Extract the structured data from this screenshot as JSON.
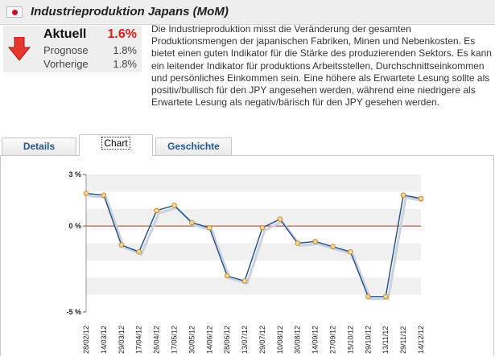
{
  "header": {
    "title": "Industrieproduktion Japans (MoM)",
    "flag_icon": "japan-flag-icon"
  },
  "values": {
    "trend_icon": "arrow-down-icon",
    "actual_label": "Aktuell",
    "actual_value": "1.6%",
    "forecast_label": "Prognose",
    "forecast_value": "1.8%",
    "previous_label": "Vorherige",
    "previous_value": "1.8%"
  },
  "description": "Die Industrieproduktion misst die Veränderung der gesamten Produktionsmengen der japanischen Fabriken, Minen und Nebenkosten. Es bietet einen guten Indikator für die Stärke des produzierenden Sektors. Es kann ein leitender Indikator für produktions Arbeitsstellen, Durchschnittseinkommen und persönliches Einkommen sein. Eine höhere als Erwartete Lesung sollte als positiv/bullisch für den JPY angesehen werden, während eine niedrigere als Erwartete Lesung als negativ/bärisch für den JPY gesehen werden.",
  "tabs": [
    {
      "label": "Details"
    },
    {
      "label": "Chart"
    },
    {
      "label": "Geschichte"
    }
  ],
  "colors": {
    "line": "#1f4e8c",
    "shadow": "#c9d2de",
    "marker_fill": "#fbd89a",
    "marker_stroke": "#c98a2c",
    "zero_line": "#b03020",
    "band": "#f0f0f0"
  },
  "chart_data": {
    "type": "line",
    "ylim": [
      -5,
      3
    ],
    "yticks": [
      3,
      0,
      -5
    ],
    "ytick_labels": [
      "3 %",
      "0 %",
      "-5 %"
    ],
    "categories": [
      "28/02/12",
      "14/03/12",
      "29/03/12",
      "17/04/12",
      "26/04/12",
      "17/05/12",
      "30/05/12",
      "14/06/12",
      "28/06/12",
      "13/07/12",
      "29/07/12",
      "10/08/12",
      "30/08/12",
      "14/09/12",
      "27/09/12",
      "15/10/12",
      "29/10/12",
      "13/11/12",
      "29/11/12",
      "14/12/12"
    ],
    "values": [
      1.9,
      1.8,
      -1.1,
      -1.5,
      0.9,
      1.2,
      0.2,
      -0.1,
      -2.9,
      -3.2,
      -0.1,
      0.4,
      -1.0,
      -0.9,
      -1.2,
      -1.5,
      -4.1,
      -4.1,
      1.8,
      1.6
    ]
  }
}
